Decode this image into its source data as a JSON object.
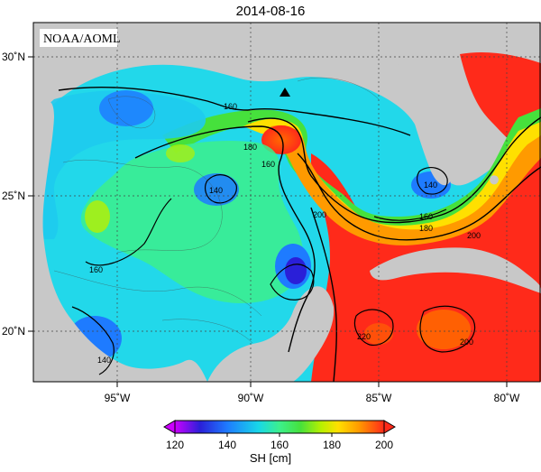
{
  "title": "2014-08-16",
  "credit": "NOAA/AOML",
  "colorbar_label": "SH [cm]",
  "colors": {
    "land": "#c8c8c8",
    "scale": [
      "#cc00ff",
      "#2a1fd8",
      "#1e7bff",
      "#18d7e8",
      "#3cf08c",
      "#46e13c",
      "#b8f000",
      "#ffe000",
      "#ff9a00",
      "#ff2a1a"
    ]
  },
  "chart_data": {
    "type": "heatmap",
    "variable": "SH [cm]",
    "x_ticks": [
      "95˚W",
      "90˚W",
      "85˚W",
      "80˚W"
    ],
    "y_ticks": [
      "30˚N",
      "25˚N",
      "20˚N"
    ],
    "colorbar_ticks": [
      "120",
      "140",
      "160",
      "180",
      "200"
    ],
    "colorbar_range": [
      120,
      200
    ],
    "contour_labels": [
      {
        "text": "160"
      },
      {
        "text": "180"
      },
      {
        "text": "160"
      },
      {
        "text": "140"
      },
      {
        "text": "200"
      },
      {
        "text": "160"
      },
      {
        "text": "140"
      },
      {
        "text": "160"
      },
      {
        "text": "180"
      },
      {
        "text": "200"
      },
      {
        "text": "220"
      },
      {
        "text": "200"
      },
      {
        "text": "140"
      }
    ],
    "marker": "triangle"
  }
}
